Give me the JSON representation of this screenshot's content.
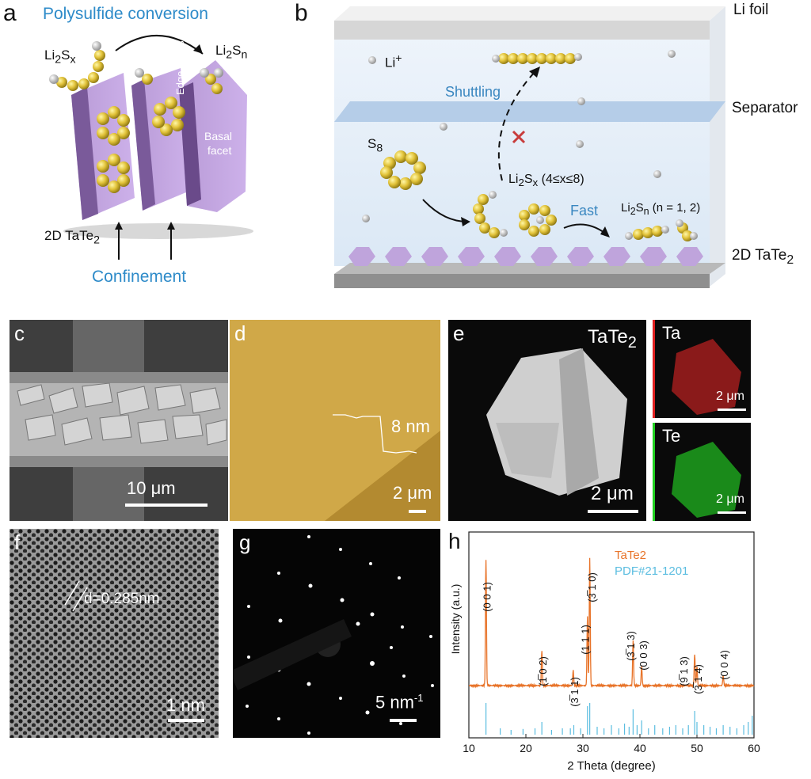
{
  "panel_a": {
    "letter": "a",
    "title": "Polysulfide conversion",
    "li2sx": {
      "base": "Li",
      "sub1": "2",
      "mid": "S",
      "sub2": "x"
    },
    "li2sn": {
      "base": "Li",
      "sub1": "2",
      "mid": "S",
      "sub2": "n"
    },
    "edge_facets": "Edge facets",
    "basal_1": "Basal",
    "basal_2": "facet",
    "tate2": {
      "base": "2D TaTe",
      "sub": "2"
    },
    "confinement": "Confinement"
  },
  "panel_b": {
    "letter": "b",
    "li_foil": "Li foil",
    "separator": "Separator",
    "tate2": {
      "base": "2D TaTe",
      "sub": "2"
    },
    "li_plus": {
      "base": "Li",
      "sup": "+"
    },
    "shuttling": "Shuttling",
    "s8": {
      "base": "S",
      "sub": "8"
    },
    "li2sx": {
      "base": "Li",
      "sub1": "2",
      "mid": "S",
      "sub2": "x",
      "tail": " (4≤x≤8)"
    },
    "fast": "Fast",
    "li2sn": {
      "base": "Li",
      "sub1": "2",
      "mid": "S",
      "sub2": "n",
      "tail": " (n = 1, 2)"
    }
  },
  "panel_c": {
    "letter": "c",
    "scale": "10 μm"
  },
  "panel_d": {
    "letter": "d",
    "step": "8 nm",
    "scale": "2 μm"
  },
  "panel_e": {
    "letter": "e",
    "title": {
      "base": "TaTe",
      "sub": "2"
    },
    "scale": "2 μm",
    "ta": "Ta",
    "te": "Te",
    "ta_scale": "2 μm",
    "te_scale": "2 μm"
  },
  "panel_f": {
    "letter": "f",
    "d_spacing": "d=0.285nm",
    "scale": "1 nm"
  },
  "panel_g": {
    "letter": "g",
    "scale": "5 nm",
    "scale_sup": "-1"
  },
  "panel_h": {
    "letter": "h"
  },
  "chart_data": {
    "type": "line",
    "xlabel": "2 Theta (degree)",
    "ylabel": "Intensity (a.u.)",
    "xlim": [
      10,
      60
    ],
    "xticks": [
      "10",
      "20",
      "30",
      "40",
      "50",
      "60"
    ],
    "legend": [
      "TaTe2",
      "PDF#21-1201"
    ],
    "series_colors": {
      "TaTe2": "#e8742a",
      "PDF#21-1201": "#5bbde0"
    },
    "series": [
      {
        "name": "TaTe2",
        "peaks": [
          [
            13.0,
            1.0
          ],
          [
            22.8,
            0.28
          ],
          [
            28.3,
            0.12
          ],
          [
            30.8,
            0.55
          ],
          [
            31.2,
            1.0
          ],
          [
            38.8,
            0.35
          ],
          [
            40.3,
            0.15
          ],
          [
            49.6,
            0.25
          ],
          [
            50.0,
            0.15
          ],
          [
            54.6,
            0.08
          ]
        ]
      },
      {
        "name": "PDF#21-1201",
        "sticks": [
          [
            13.0,
            1.0
          ],
          [
            15.5,
            0.2
          ],
          [
            17.4,
            0.15
          ],
          [
            19.5,
            0.18
          ],
          [
            21.6,
            0.2
          ],
          [
            22.8,
            0.4
          ],
          [
            24.5,
            0.15
          ],
          [
            26.4,
            0.2
          ],
          [
            27.8,
            0.2
          ],
          [
            28.4,
            0.3
          ],
          [
            29.6,
            0.2
          ],
          [
            30.8,
            0.9
          ],
          [
            31.2,
            1.0
          ],
          [
            32.5,
            0.25
          ],
          [
            33.7,
            0.2
          ],
          [
            35.0,
            0.3
          ],
          [
            36.3,
            0.2
          ],
          [
            37.3,
            0.35
          ],
          [
            38.1,
            0.25
          ],
          [
            38.8,
            0.8
          ],
          [
            39.5,
            0.3
          ],
          [
            40.3,
            0.45
          ],
          [
            41.5,
            0.2
          ],
          [
            42.6,
            0.3
          ],
          [
            44.0,
            0.2
          ],
          [
            45.2,
            0.25
          ],
          [
            46.3,
            0.3
          ],
          [
            47.5,
            0.2
          ],
          [
            48.5,
            0.3
          ],
          [
            49.6,
            0.75
          ],
          [
            50.0,
            0.4
          ],
          [
            51.2,
            0.3
          ],
          [
            52.3,
            0.25
          ],
          [
            53.4,
            0.2
          ],
          [
            54.6,
            0.3
          ],
          [
            55.8,
            0.25
          ],
          [
            57.0,
            0.2
          ],
          [
            58.2,
            0.3
          ],
          [
            59.0,
            0.4
          ],
          [
            59.7,
            0.6
          ]
        ]
      }
    ],
    "peak_labels": [
      {
        "x": 13.0,
        "text": "(0 0 1)"
      },
      {
        "x": 22.8,
        "text": "(1̅ 0 2)"
      },
      {
        "x": 28.3,
        "text": "(3̅ 1 1)"
      },
      {
        "x": 30.2,
        "text": "(1 1 1)"
      },
      {
        "x": 31.4,
        "text": "(3̅ 1 0)"
      },
      {
        "x": 38.2,
        "text": "(3̅ 1 3)"
      },
      {
        "x": 40.4,
        "text": "(0 0 3)"
      },
      {
        "x": 47.5,
        "text": "(9̅ 1 3)"
      },
      {
        "x": 50.0,
        "text": "(3̅ 1 4)"
      },
      {
        "x": 54.6,
        "text": "(0 0 4)"
      }
    ]
  }
}
